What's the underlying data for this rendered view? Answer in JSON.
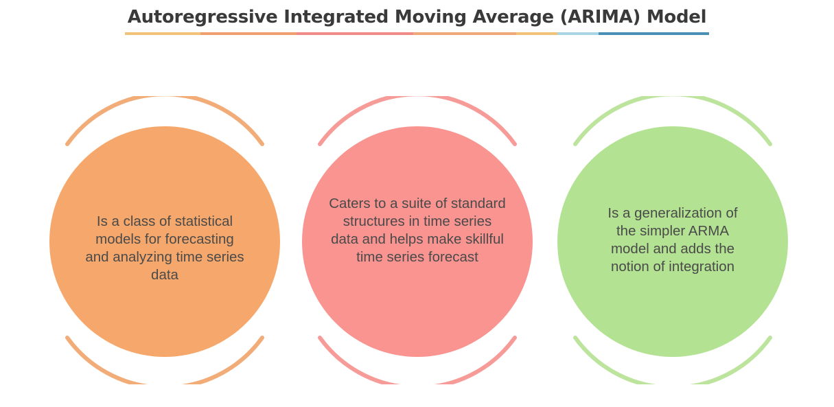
{
  "title": "Autoregressive Integrated Moving Average (ARIMA) Model",
  "underline_colors": [
    "#f2c27a",
    "#f0a070",
    "#f08a86",
    "#f0a878",
    "#f2c27a",
    "#a9d6e6",
    "#4a8fb5"
  ],
  "cards": [
    {
      "text": "Is a class of statistical models for forecasting and analyzing time series data",
      "fill": "#f6a86c",
      "arc": "#f2ac78"
    },
    {
      "text": "Caters to a suite of standard structures in time series data and helps make skillful time series forecast",
      "fill": "#f99491",
      "arc": "#f69b98"
    },
    {
      "text": "Is a generalization of the simpler ARMA model and adds the notion of integration",
      "fill": "#b3e292",
      "arc": "#bde49d"
    }
  ]
}
